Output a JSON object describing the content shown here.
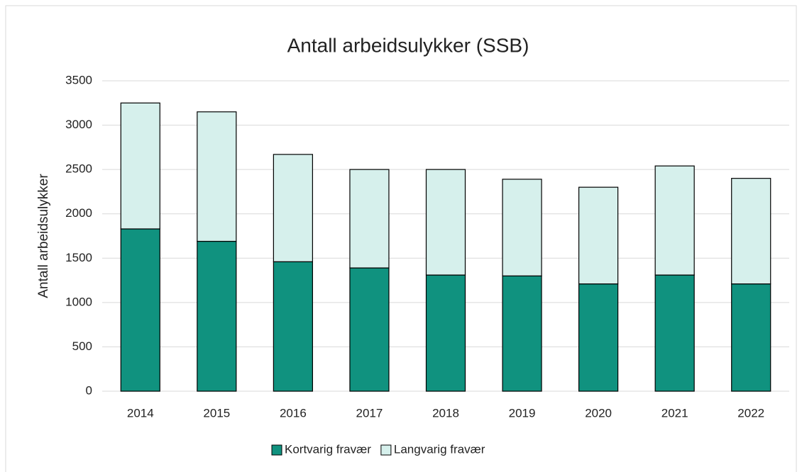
{
  "chart_data": {
    "type": "stacked_bar",
    "title": "Antall arbeidsulykker (SSB)",
    "y_label": "Antall arbeidsulykker",
    "categories": [
      "2014",
      "2015",
      "2016",
      "2017",
      "2018",
      "2019",
      "2020",
      "2021",
      "2022"
    ],
    "series": [
      {
        "name": "Kortvarig fravær",
        "color": "#10927f",
        "values": [
          1830,
          1690,
          1460,
          1390,
          1310,
          1300,
          1210,
          1310,
          1210
        ]
      },
      {
        "name": "Langvarig fravær",
        "color": "#d6f0ec",
        "values": [
          1420,
          1460,
          1210,
          1110,
          1190,
          1090,
          1090,
          1230,
          1190
        ]
      }
    ],
    "ylim": [
      0,
      3500
    ],
    "yticks": [
      0,
      500,
      1000,
      1500,
      2000,
      2500,
      3000,
      3500
    ],
    "grid": true,
    "legend": "bottom"
  }
}
